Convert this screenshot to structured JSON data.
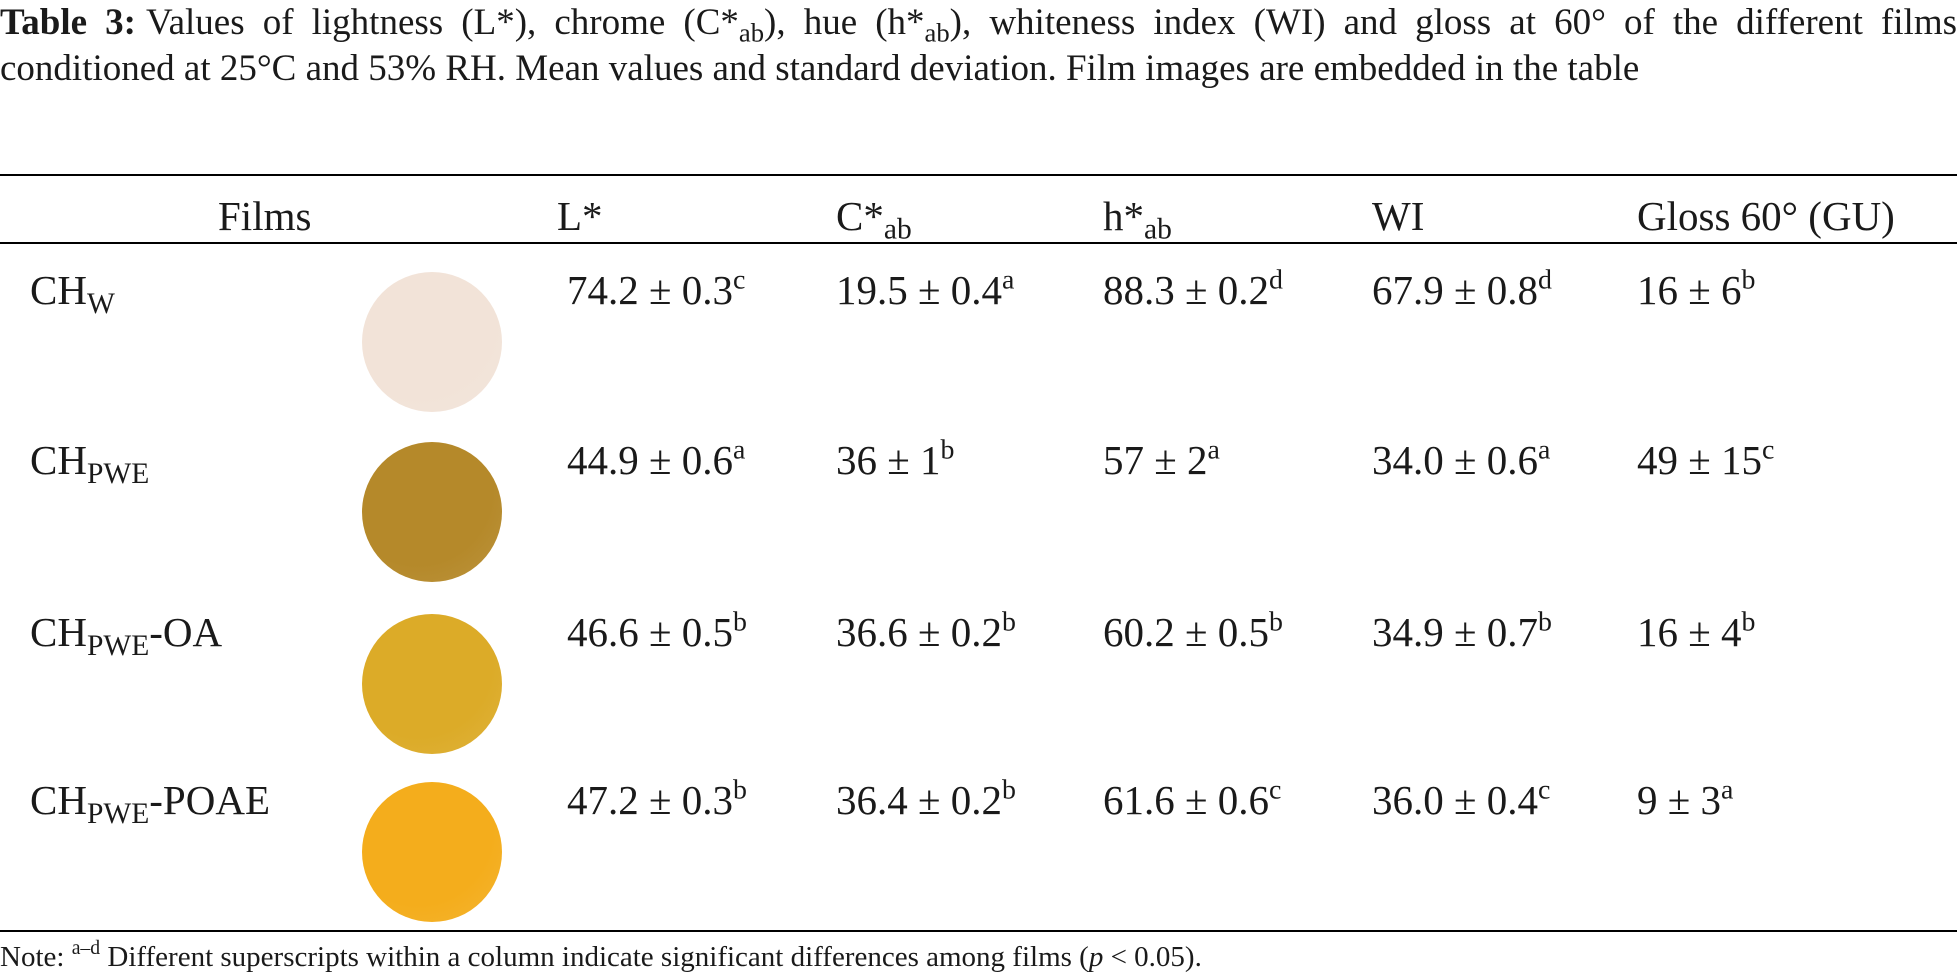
{
  "caption": {
    "label": "Table 3:",
    "text_pre": "Values of lightness (L*), chrome (C*",
    "sub1": "ab",
    "text_mid1": "), hue (h*",
    "sub2": "ab",
    "text_post": "), whiteness index (WI) and gloss at 60° of the different films conditioned at 25°C and 53% RH. Mean values and standard deviation. Film images are embedded in the table"
  },
  "headers": {
    "films": "Films",
    "L": "L*",
    "C_main": "C*",
    "C_sub": "ab",
    "h_main": "h*",
    "h_sub": "ab",
    "WI": "WI",
    "gloss": "Gloss 60° (GU)"
  },
  "rows": [
    {
      "film_main": "CH",
      "film_sub": "W",
      "film_suffix": "",
      "swatch_color": "#f2e3d8",
      "L": {
        "value": "74.2 ± 0.3",
        "sig": "c"
      },
      "C": {
        "value": "19.5 ± 0.4",
        "sig": "a"
      },
      "h": {
        "value": "88.3 ± 0.2",
        "sig": "d"
      },
      "WI": {
        "value": "67.9 ± 0.8",
        "sig": "d"
      },
      "gloss": {
        "value": "16 ± 6",
        "sig": "b"
      }
    },
    {
      "film_main": "CH",
      "film_sub": "PWE",
      "film_suffix": "",
      "swatch_color": "#b5892a",
      "L": {
        "value": "44.9 ± 0.6",
        "sig": "a"
      },
      "C": {
        "value": "36 ± 1",
        "sig": "b"
      },
      "h": {
        "value": "57 ± 2",
        "sig": "a"
      },
      "WI": {
        "value": "34.0 ± 0.6",
        "sig": "a"
      },
      "gloss": {
        "value": "49 ± 15",
        "sig": "c"
      }
    },
    {
      "film_main": "CH",
      "film_sub": "PWE",
      "film_suffix": "-OA",
      "swatch_color": "#dcab28",
      "L": {
        "value": "46.6 ± 0.5",
        "sig": "b"
      },
      "C": {
        "value": "36.6 ± 0.2",
        "sig": "b"
      },
      "h": {
        "value": "60.2 ± 0.5",
        "sig": "b"
      },
      "WI": {
        "value": "34.9 ± 0.7",
        "sig": "b"
      },
      "gloss": {
        "value": "16 ± 4",
        "sig": "b"
      }
    },
    {
      "film_main": "CH",
      "film_sub": "PWE",
      "film_suffix": "-POAE",
      "swatch_color": "#f4ad1c",
      "L": {
        "value": "47.2 ± 0.3",
        "sig": "b"
      },
      "C": {
        "value": "36.4 ± 0.2",
        "sig": "b"
      },
      "h": {
        "value": "61.6 ± 0.6",
        "sig": "c"
      },
      "WI": {
        "value": "36.0 ± 0.4",
        "sig": "c"
      },
      "gloss": {
        "value": "9 ± 3",
        "sig": "a"
      }
    }
  ],
  "note": {
    "prefix": "Note:",
    "sup": "a–d",
    "text": " Different superscripts within a column indicate significant differences among films (",
    "p": "p",
    "tail": " < 0.05)."
  }
}
